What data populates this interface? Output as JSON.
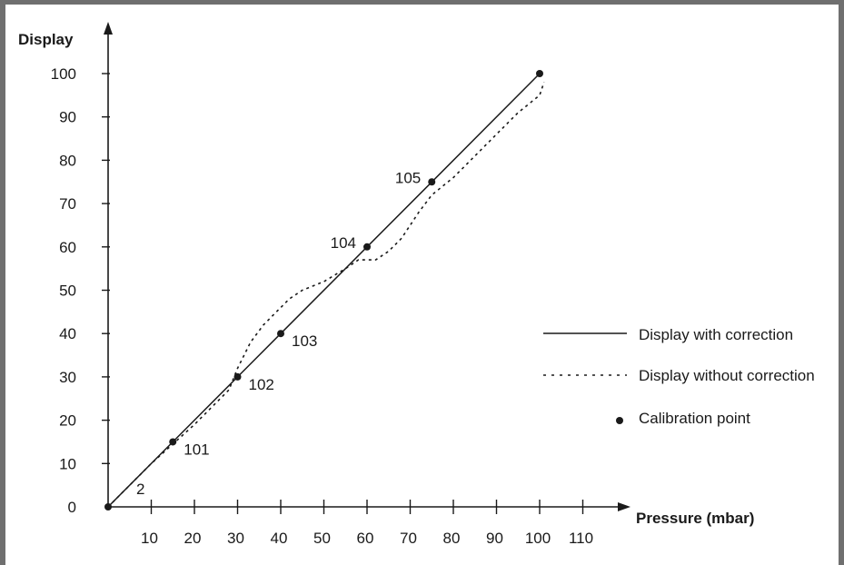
{
  "chart_data": {
    "type": "line",
    "xlabel": "Pressure (mbar)",
    "ylabel": "Display",
    "xlim": [
      0,
      115
    ],
    "ylim": [
      0,
      105
    ],
    "x_ticks": [
      10,
      20,
      30,
      40,
      50,
      60,
      70,
      80,
      90,
      100,
      110
    ],
    "y_ticks": [
      0,
      10,
      20,
      30,
      40,
      50,
      60,
      70,
      80,
      90,
      100
    ],
    "series": [
      {
        "name": "Display with correction",
        "style": "solid",
        "x": [
          0,
          15,
          30,
          40,
          60,
          75,
          100
        ],
        "y": [
          0,
          15,
          30,
          40,
          60,
          75,
          100
        ]
      },
      {
        "name": "Display without correction",
        "style": "dotted",
        "x": [
          0,
          10,
          20,
          28,
          30,
          33,
          36,
          38,
          42,
          45,
          50,
          55,
          58,
          62,
          65,
          68,
          72,
          75,
          80,
          85,
          90,
          95,
          100,
          101
        ],
        "y": [
          0,
          10,
          19,
          27,
          32,
          38,
          42,
          44,
          48,
          50,
          52,
          55,
          57,
          57,
          59,
          62,
          68,
          72,
          76,
          81,
          86,
          91,
          95,
          98
        ]
      }
    ],
    "calibration_points": {
      "name": "Calibration point",
      "points": [
        {
          "x": 0,
          "y": 0,
          "label": ""
        },
        {
          "x": 15,
          "y": 15,
          "label": "101"
        },
        {
          "x": 30,
          "y": 30,
          "label": "102"
        },
        {
          "x": 40,
          "y": 40,
          "label": "103"
        },
        {
          "x": 60,
          "y": 60,
          "label": "104"
        },
        {
          "x": 75,
          "y": 75,
          "label": "105"
        },
        {
          "x": 100,
          "y": 100,
          "label": ""
        }
      ]
    },
    "annotations": [
      {
        "x": 5,
        "y": 5,
        "text": "2"
      }
    ],
    "legend": {
      "placement": "right",
      "items": [
        "Display with correction",
        "Display without correction",
        "Calibration point"
      ]
    },
    "grid": false
  }
}
